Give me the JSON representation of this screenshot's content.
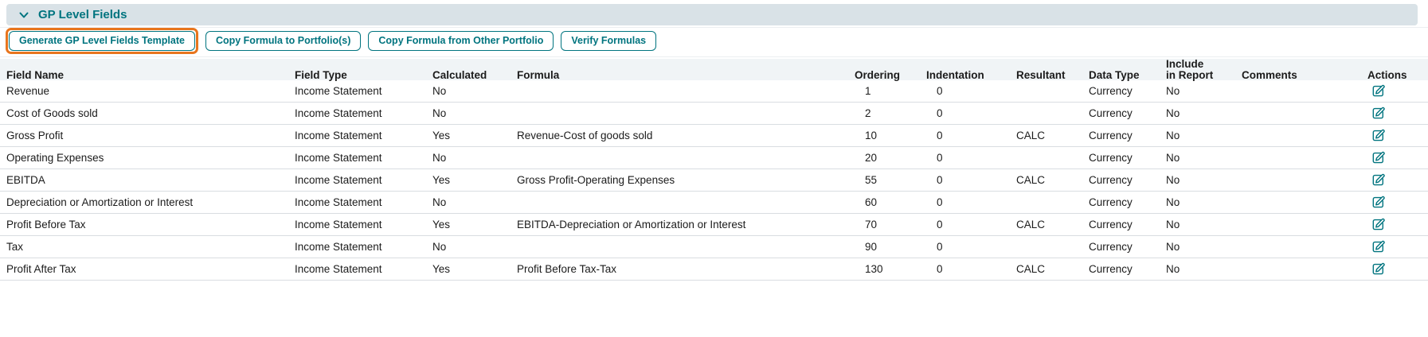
{
  "colors": {
    "teal": "#00747f",
    "highlight_orange": "#e8751d",
    "section_bar_bg": "#d9e2e7",
    "table_header_bg": "#f0f4f6",
    "row_border": "#d9dde1"
  },
  "section": {
    "title": "GP Level Fields",
    "collapse_icon": "chevron-down"
  },
  "toolbar": {
    "buttons": [
      {
        "label": "Generate GP Level Fields Template",
        "highlighted": true
      },
      {
        "label": "Copy Formula to Portfolio(s)",
        "highlighted": false
      },
      {
        "label": "Copy Formula from Other Portfolio",
        "highlighted": false
      },
      {
        "label": "Verify Formulas",
        "highlighted": false
      }
    ]
  },
  "table": {
    "columns": [
      "Field Name",
      "Field Type",
      "Calculated",
      "Formula",
      "Ordering",
      "Indentation",
      "Resultant",
      "Data Type",
      "Include in Report",
      "Comments",
      "Actions"
    ],
    "action_icon": "edit-pencil-square",
    "rows": [
      {
        "field_name": "Revenue",
        "field_type": "Income Statement",
        "calculated": "No",
        "formula": "",
        "ordering": 1,
        "indentation": 0,
        "resultant": "",
        "data_type": "Currency",
        "include_in_report": "No",
        "comments": ""
      },
      {
        "field_name": "Cost of Goods sold",
        "field_type": "Income Statement",
        "calculated": "No",
        "formula": "",
        "ordering": 2,
        "indentation": 0,
        "resultant": "",
        "data_type": "Currency",
        "include_in_report": "No",
        "comments": ""
      },
      {
        "field_name": "Gross Profit",
        "field_type": "Income Statement",
        "calculated": "Yes",
        "formula": "Revenue-Cost of goods sold",
        "ordering": 10,
        "indentation": 0,
        "resultant": "CALC",
        "data_type": "Currency",
        "include_in_report": "No",
        "comments": ""
      },
      {
        "field_name": "Operating Expenses",
        "field_type": "Income Statement",
        "calculated": "No",
        "formula": "",
        "ordering": 20,
        "indentation": 0,
        "resultant": "",
        "data_type": "Currency",
        "include_in_report": "No",
        "comments": ""
      },
      {
        "field_name": "EBITDA",
        "field_type": "Income Statement",
        "calculated": "Yes",
        "formula": "Gross Profit-Operating Expenses",
        "ordering": 55,
        "indentation": 0,
        "resultant": "CALC",
        "data_type": "Currency",
        "include_in_report": "No",
        "comments": ""
      },
      {
        "field_name": "Depreciation or Amortization or Interest",
        "field_type": "Income Statement",
        "calculated": "No",
        "formula": "",
        "ordering": 60,
        "indentation": 0,
        "resultant": "",
        "data_type": "Currency",
        "include_in_report": "No",
        "comments": ""
      },
      {
        "field_name": "Profit Before Tax",
        "field_type": "Income Statement",
        "calculated": "Yes",
        "formula": "EBITDA-Depreciation or Amortization or Interest",
        "ordering": 70,
        "indentation": 0,
        "resultant": "CALC",
        "data_type": "Currency",
        "include_in_report": "No",
        "comments": ""
      },
      {
        "field_name": "Tax",
        "field_type": "Income Statement",
        "calculated": "No",
        "formula": "",
        "ordering": 90,
        "indentation": 0,
        "resultant": "",
        "data_type": "Currency",
        "include_in_report": "No",
        "comments": ""
      },
      {
        "field_name": "Profit After Tax",
        "field_type": "Income Statement",
        "calculated": "Yes",
        "formula": "Profit Before Tax-Tax",
        "ordering": 130,
        "indentation": 0,
        "resultant": "CALC",
        "data_type": "Currency",
        "include_in_report": "No",
        "comments": ""
      }
    ]
  }
}
